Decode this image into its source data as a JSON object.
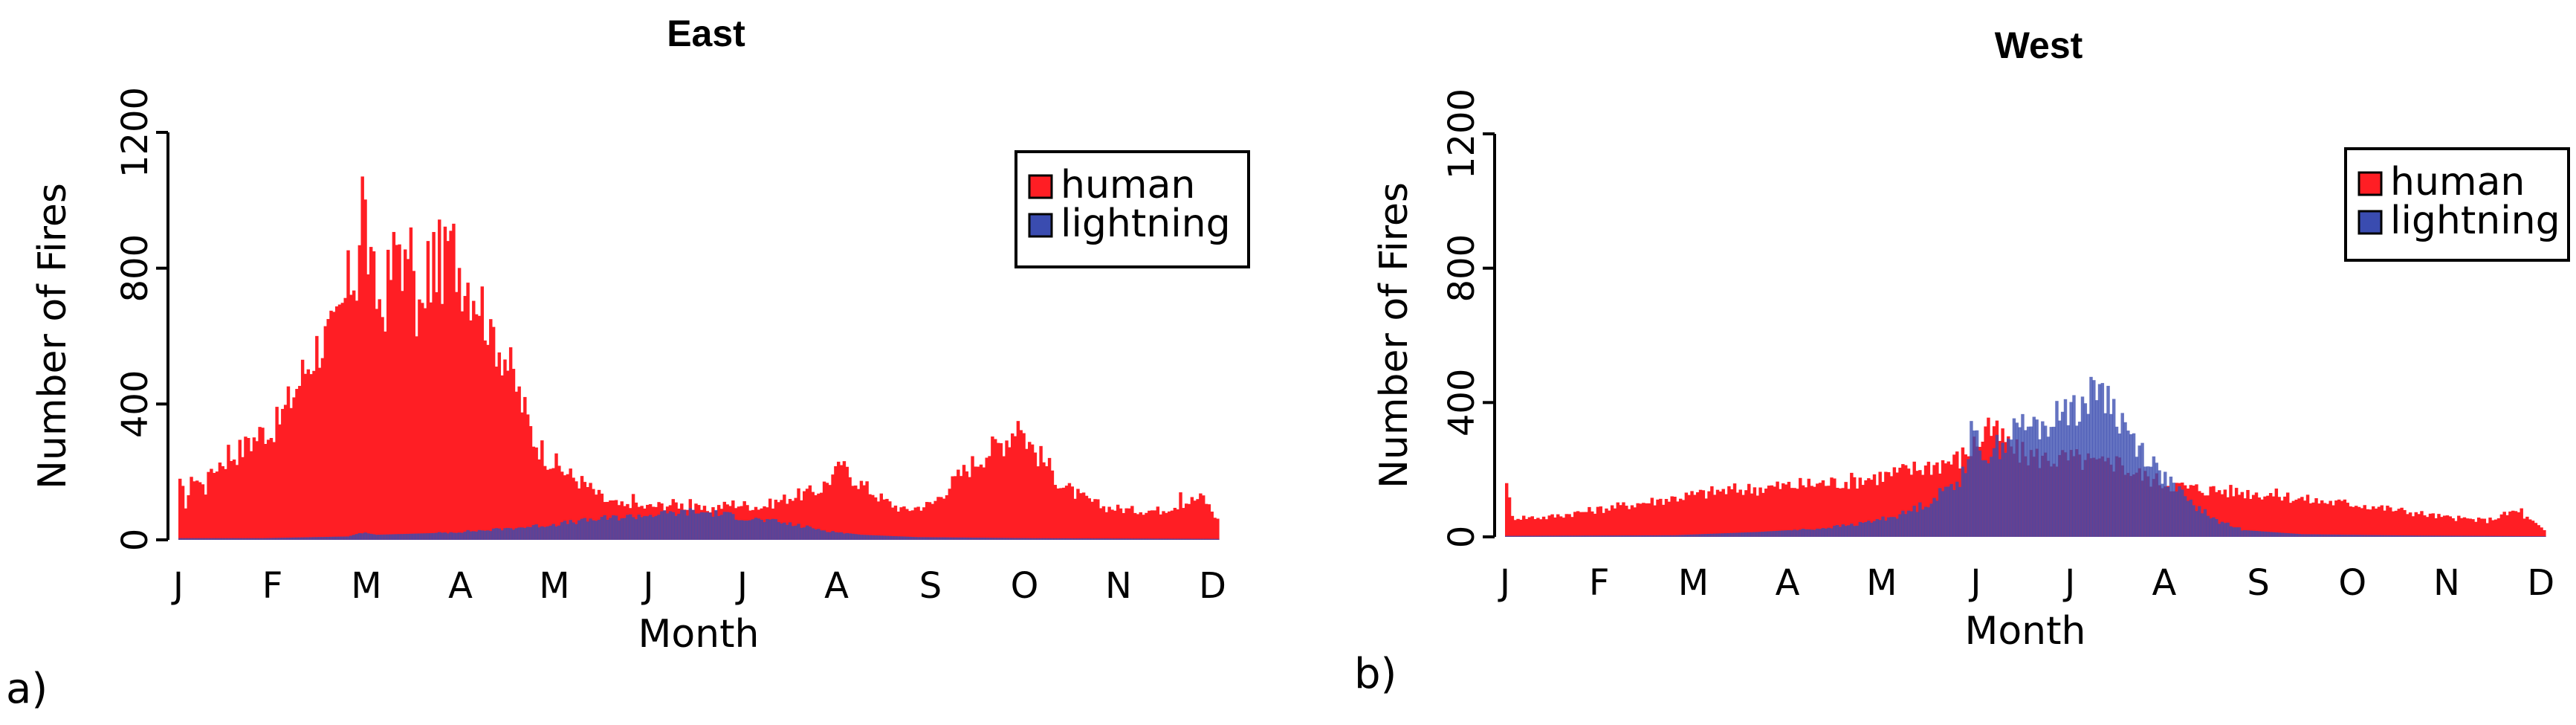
{
  "chart_data": [
    {
      "type": "bar",
      "title": "East",
      "panel_label": "a)",
      "xlabel": "Month",
      "ylabel": "Number of Fires",
      "ylim": [
        0,
        1200
      ],
      "yticks": [
        0,
        400,
        800,
        1200
      ],
      "month_labels": [
        "J",
        "F",
        "M",
        "A",
        "M",
        "J",
        "J",
        "A",
        "S",
        "O",
        "N",
        "D"
      ],
      "legend": {
        "position": "top-right",
        "entries": [
          "human",
          "lightning"
        ]
      },
      "grid": false,
      "series": [
        {
          "name": "human",
          "color": "#ff1e24",
          "anchors": [
            [
              1,
              180
            ],
            [
              3,
              110
            ],
            [
              6,
              200
            ],
            [
              10,
              150
            ],
            [
              14,
              230
            ],
            [
              20,
              260
            ],
            [
              25,
              290
            ],
            [
              30,
              330
            ],
            [
              35,
              350
            ],
            [
              40,
              430
            ],
            [
              45,
              520
            ],
            [
              50,
              600
            ],
            [
              55,
              620
            ],
            [
              58,
              700
            ],
            [
              61,
              800
            ],
            [
              63,
              810
            ],
            [
              65,
              1070
            ],
            [
              68,
              790
            ],
            [
              72,
              700
            ],
            [
              76,
              850
            ],
            [
              78,
              920
            ],
            [
              82,
              720
            ],
            [
              87,
              680
            ],
            [
              90,
              860
            ],
            [
              94,
              830
            ],
            [
              97,
              880
            ],
            [
              100,
              820
            ],
            [
              105,
              760
            ],
            [
              110,
              650
            ],
            [
              115,
              560
            ],
            [
              120,
              440
            ],
            [
              125,
              310
            ],
            [
              130,
              250
            ],
            [
              137,
              200
            ],
            [
              143,
              170
            ],
            [
              150,
              120
            ],
            [
              157,
              100
            ],
            [
              165,
              100
            ],
            [
              175,
              110
            ],
            [
              185,
              90
            ],
            [
              195,
              110
            ],
            [
              205,
              100
            ],
            [
              215,
              130
            ],
            [
              225,
              150
            ],
            [
              233,
              220
            ],
            [
              240,
              170
            ],
            [
              248,
              120
            ],
            [
              255,
              90
            ],
            [
              265,
              110
            ],
            [
              275,
              200
            ],
            [
              283,
              260
            ],
            [
              290,
              300
            ],
            [
              295,
              350
            ],
            [
              300,
              280
            ],
            [
              305,
              230
            ],
            [
              310,
              170
            ],
            [
              317,
              130
            ],
            [
              325,
              100
            ],
            [
              335,
              90
            ],
            [
              345,
              90
            ],
            [
              352,
              110
            ],
            [
              360,
              130
            ],
            [
              365,
              60
            ]
          ],
          "spikes": [
            [
              1,
              180
            ],
            [
              11,
              200
            ],
            [
              18,
              280
            ],
            [
              25,
              300
            ],
            [
              33,
              300
            ],
            [
              65,
              1070
            ],
            [
              82,
              920
            ],
            [
              88,
              880
            ],
            [
              95,
              880
            ],
            [
              110,
              650
            ],
            [
              160,
              135
            ],
            [
              180,
              120
            ],
            [
              233,
              220
            ],
            [
              295,
              350
            ],
            [
              352,
              140
            ]
          ]
        },
        {
          "name": "lightning",
          "color": "#3a4cb0",
          "anchors": [
            [
              1,
              5
            ],
            [
              30,
              5
            ],
            [
              60,
              10
            ],
            [
              65,
              22
            ],
            [
              70,
              15
            ],
            [
              90,
              20
            ],
            [
              110,
              30
            ],
            [
              130,
              45
            ],
            [
              150,
              65
            ],
            [
              165,
              75
            ],
            [
              180,
              85
            ],
            [
              190,
              80
            ],
            [
              200,
              65
            ],
            [
              210,
              55
            ],
            [
              220,
              40
            ],
            [
              230,
              25
            ],
            [
              240,
              15
            ],
            [
              260,
              8
            ],
            [
              300,
              5
            ],
            [
              365,
              3
            ]
          ],
          "spikes": []
        }
      ]
    },
    {
      "type": "bar",
      "title": "West",
      "panel_label": "b)",
      "xlabel": "Month",
      "ylabel": "Number of Fires",
      "ylim": [
        0,
        1200
      ],
      "yticks": [
        0,
        400,
        800,
        1200
      ],
      "month_labels": [
        "J",
        "F",
        "M",
        "A",
        "M",
        "J",
        "J",
        "A",
        "S",
        "O",
        "N",
        "D"
      ],
      "legend": {
        "position": "top-right",
        "entries": [
          "human",
          "lightning"
        ]
      },
      "grid": false,
      "series": [
        {
          "name": "human",
          "color": "#ff1e24",
          "anchors": [
            [
              1,
              160
            ],
            [
              3,
              60
            ],
            [
              15,
              60
            ],
            [
              30,
              80
            ],
            [
              45,
              100
            ],
            [
              60,
              120
            ],
            [
              75,
              140
            ],
            [
              90,
              150
            ],
            [
              105,
              160
            ],
            [
              120,
              170
            ],
            [
              135,
              190
            ],
            [
              150,
              220
            ],
            [
              160,
              240
            ],
            [
              165,
              280
            ],
            [
              170,
              330
            ],
            [
              175,
              300
            ],
            [
              180,
              260
            ],
            [
              190,
              240
            ],
            [
              200,
              240
            ],
            [
              210,
              220
            ],
            [
              215,
              230
            ],
            [
              220,
              200
            ],
            [
              230,
              170
            ],
            [
              240,
              150
            ],
            [
              255,
              140
            ],
            [
              270,
              130
            ],
            [
              285,
              110
            ],
            [
              300,
              100
            ],
            [
              315,
              80
            ],
            [
              330,
              60
            ],
            [
              345,
              50
            ],
            [
              355,
              80
            ],
            [
              362,
              40
            ],
            [
              365,
              20
            ]
          ],
          "spikes": [
            [
              1,
              160
            ],
            [
              170,
              355
            ],
            [
              215,
              240
            ],
            [
              357,
              85
            ]
          ]
        },
        {
          "name": "lightning",
          "color": "#3a4cb0",
          "anchors": [
            [
              1,
              3
            ],
            [
              60,
              5
            ],
            [
              90,
              15
            ],
            [
              110,
              25
            ],
            [
              125,
              40
            ],
            [
              140,
              70
            ],
            [
              150,
              110
            ],
            [
              160,
              180
            ],
            [
              165,
              300
            ],
            [
              170,
              250
            ],
            [
              180,
              330
            ],
            [
              190,
              340
            ],
            [
              197,
              380
            ],
            [
              205,
              420
            ],
            [
              210,
              450
            ],
            [
              215,
              380
            ],
            [
              220,
              310
            ],
            [
              230,
              200
            ],
            [
              240,
              110
            ],
            [
              250,
              50
            ],
            [
              260,
              20
            ],
            [
              280,
              8
            ],
            [
              320,
              4
            ],
            [
              365,
              2
            ]
          ],
          "spikes": [
            [
              164,
              345
            ],
            [
              180,
              340
            ],
            [
              197,
              410
            ],
            [
              209,
              455
            ]
          ]
        }
      ]
    }
  ]
}
